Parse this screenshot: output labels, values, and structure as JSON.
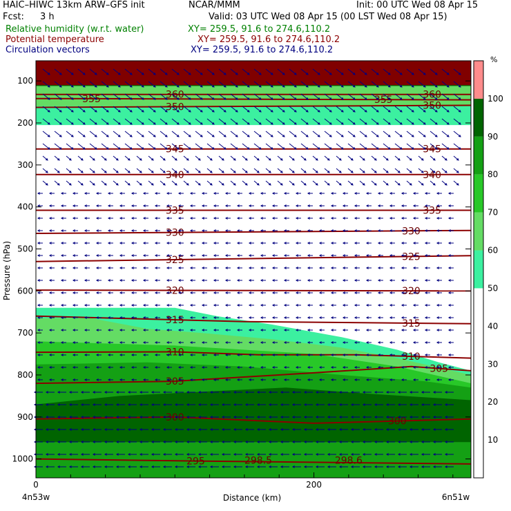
{
  "header": {
    "model_title": "HAIC–HIWC 13km ARW–GFS init",
    "center": "NCAR/MMM",
    "init": "Init: 00 UTC Wed 08 Apr 15",
    "fcst_label": "Fcst:",
    "fcst_value": "3 h",
    "valid": "Valid: 03 UTC Wed 08 Apr 15 (00 LST Wed 08 Apr 15)",
    "fields": [
      {
        "name": "Relative humidity (w.r.t. water)",
        "xy": "XY= 259.5, 91.6 to 274.6,110.2",
        "color": "#008000"
      },
      {
        "name": "Potential temperature",
        "xy": "XY= 259.5, 91.6 to 274.6,110.2",
        "color": "#8b0000"
      },
      {
        "name": "Circulation vectors",
        "xy": "XY= 259.5, 91.6 to 274.6,110.2",
        "color": "#000080"
      }
    ]
  },
  "chart_data": {
    "type": "heatmap",
    "xlabel": "Distance (km)",
    "ylabel": "Pressure (hPa)",
    "x_ticks": [
      "0",
      "200"
    ],
    "x_endpoints": {
      "left": "4n53w",
      "right": "6n51w"
    },
    "y_ticks": [
      "100",
      "200",
      "300",
      "400",
      "500",
      "600",
      "700",
      "800",
      "900",
      "1000"
    ],
    "xlim_km": [
      0,
      313
    ],
    "ylim_hpa": [
      1045,
      52
    ],
    "rh_colorbar": {
      "unit": "%",
      "tick_labels": [
        "10",
        "20",
        "30",
        "40",
        "50",
        "60",
        "70",
        "80",
        "90",
        "100"
      ],
      "bins": [
        {
          "range": [
            0,
            50
          ],
          "color": "#ffffff"
        },
        {
          "range": [
            50,
            60
          ],
          "color": "#3cf0a0"
        },
        {
          "range": [
            60,
            70
          ],
          "color": "#64dc64"
        },
        {
          "range": [
            70,
            80
          ],
          "color": "#28c828"
        },
        {
          "range": [
            80,
            90
          ],
          "color": "#14a014"
        },
        {
          "range": [
            90,
            100
          ],
          "color": "#006400"
        },
        {
          "range": [
            100,
            110
          ],
          "color": "#ff8c8c"
        }
      ]
    },
    "rh_regions": [
      {
        "range": [
          90,
          100
        ],
        "boundary": [
          [
            0,
            52
          ],
          [
            313,
            52
          ],
          [
            313,
            112
          ],
          [
            0,
            112
          ]
        ]
      },
      {
        "range": [
          50,
          60
        ],
        "boundary": [
          [
            0,
            112
          ],
          [
            313,
            112
          ],
          [
            313,
            205
          ],
          [
            0,
            205
          ]
        ]
      },
      {
        "range": [
          60,
          70
        ],
        "boundary": [
          [
            0,
            112
          ],
          [
            313,
            112
          ],
          [
            313,
            160
          ],
          [
            0,
            160
          ]
        ]
      },
      {
        "range": [
          50,
          60
        ],
        "boundary": [
          [
            0,
            640
          ],
          [
            100,
            640
          ],
          [
            130,
            660
          ],
          [
            170,
            680
          ],
          [
            220,
            710
          ],
          [
            260,
            740
          ],
          [
            290,
            770
          ],
          [
            313,
            790
          ],
          [
            313,
            1045
          ],
          [
            0,
            1045
          ]
        ]
      },
      {
        "range": [
          60,
          70
        ],
        "boundary": [
          [
            0,
            665
          ],
          [
            40,
            665
          ],
          [
            80,
            690
          ],
          [
            120,
            700
          ],
          [
            170,
            715
          ],
          [
            220,
            735
          ],
          [
            260,
            760
          ],
          [
            313,
            800
          ],
          [
            313,
            1045
          ],
          [
            0,
            1045
          ]
        ]
      },
      {
        "range": [
          70,
          80
        ],
        "boundary": [
          [
            0,
            720
          ],
          [
            100,
            730
          ],
          [
            150,
            740
          ],
          [
            200,
            750
          ],
          [
            260,
            780
          ],
          [
            313,
            820
          ],
          [
            313,
            1045
          ],
          [
            0,
            1045
          ]
        ]
      },
      {
        "range": [
          80,
          90
        ],
        "boundary": [
          [
            0,
            775
          ],
          [
            80,
            770
          ],
          [
            150,
            780
          ],
          [
            220,
            800
          ],
          [
            280,
            815
          ],
          [
            313,
            830
          ],
          [
            313,
            1045
          ],
          [
            0,
            1045
          ]
        ]
      },
      {
        "range": [
          90,
          100
        ],
        "boundary": [
          [
            0,
            870
          ],
          [
            60,
            850
          ],
          [
            120,
            840
          ],
          [
            180,
            830
          ],
          [
            240,
            845
          ],
          [
            313,
            860
          ],
          [
            313,
            1045
          ],
          [
            0,
            1045
          ]
        ]
      },
      {
        "range": [
          80,
          90
        ],
        "boundary": [
          [
            0,
            960
          ],
          [
            313,
            960
          ],
          [
            313,
            1045
          ],
          [
            0,
            1045
          ]
        ]
      }
    ],
    "theta_contours": [
      {
        "value": 360,
        "points": [
          [
            0,
            132
          ],
          [
            313,
            132
          ]
        ],
        "label_x": [
          100,
          285
        ]
      },
      {
        "value": 355,
        "points": [
          [
            0,
            142
          ],
          [
            313,
            145
          ]
        ],
        "label_x": [
          40,
          250
        ]
      },
      {
        "value": 350,
        "points": [
          [
            0,
            163
          ],
          [
            313,
            158
          ]
        ],
        "label_x": [
          100,
          285
        ]
      },
      {
        "value": 345,
        "points": [
          [
            0,
            262
          ],
          [
            313,
            262
          ]
        ],
        "label_x": [
          100,
          285
        ]
      },
      {
        "value": 340,
        "points": [
          [
            0,
            323
          ],
          [
            313,
            323
          ]
        ],
        "label_x": [
          100,
          285
        ]
      },
      {
        "value": 335,
        "points": [
          [
            0,
            408
          ],
          [
            313,
            408
          ]
        ],
        "label_x": [
          100,
          285
        ]
      },
      {
        "value": 330,
        "points": [
          [
            0,
            463
          ],
          [
            313,
            456
          ]
        ],
        "label_x": [
          100,
          270
        ]
      },
      {
        "value": 325,
        "points": [
          [
            0,
            530
          ],
          [
            313,
            516
          ]
        ],
        "label_x": [
          100,
          270
        ]
      },
      {
        "value": 320,
        "points": [
          [
            0,
            598
          ],
          [
            313,
            600
          ]
        ],
        "label_x": [
          100,
          270
        ]
      },
      {
        "value": 315,
        "points": [
          [
            0,
            660
          ],
          [
            150,
            673
          ],
          [
            313,
            678
          ]
        ],
        "label_x": [
          100,
          270
        ]
      },
      {
        "value": 310,
        "points": [
          [
            0,
            746
          ],
          [
            100,
            745
          ],
          [
            160,
            752
          ],
          [
            230,
            752
          ],
          [
            313,
            760
          ]
        ],
        "label_x": [
          100,
          270
        ]
      },
      {
        "value": 305,
        "points": [
          [
            0,
            820
          ],
          [
            100,
            815
          ],
          [
            200,
            795
          ],
          [
            270,
            780
          ],
          [
            313,
            790
          ]
        ],
        "label_x": [
          100,
          290
        ]
      },
      {
        "value": 300,
        "points": [
          [
            0,
            905
          ],
          [
            100,
            900
          ],
          [
            200,
            915
          ],
          [
            313,
            905
          ]
        ],
        "label_x": [
          100,
          260
        ]
      },
      {
        "value": 295,
        "points": [
          [
            0,
            1000
          ],
          [
            120,
            1005
          ],
          [
            313,
            1012
          ]
        ],
        "label_x": [
          115
        ]
      },
      {
        "value": 298.5,
        "points": [],
        "label_x": [
          160
        ]
      },
      {
        "value": 298.6,
        "points": [],
        "label_x": [
          225
        ]
      }
    ],
    "wind_vectors": {
      "note": "circulation vectors; mostly leftward-pointing, longer near top and in the low levels",
      "upper_direction": "down-right",
      "low_level_direction": "left"
    }
  }
}
